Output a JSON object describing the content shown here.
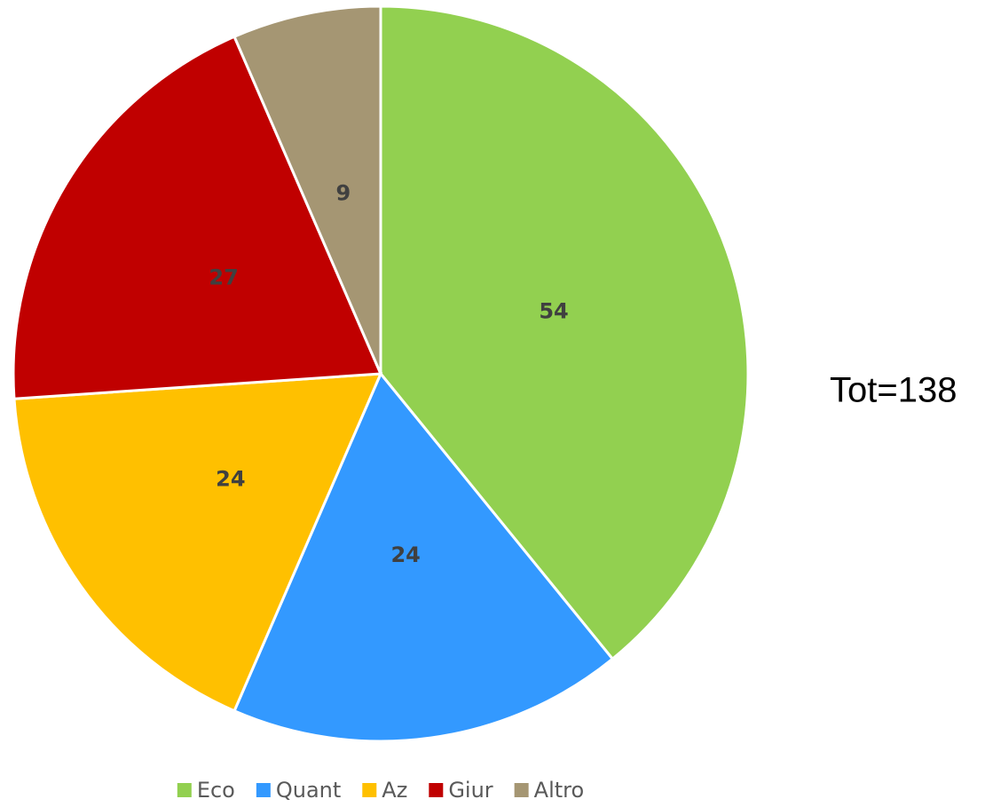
{
  "chart_data": {
    "type": "pie",
    "categories": [
      "Eco",
      "Quant",
      "Az",
      "Giur",
      "Altro"
    ],
    "values": [
      54,
      24,
      24,
      27,
      9
    ],
    "colors": [
      "#92d050",
      "#3399ff",
      "#ffc000",
      "#c00000",
      "#a59673"
    ],
    "annotation": "Tot=138",
    "legend": "bottom"
  }
}
